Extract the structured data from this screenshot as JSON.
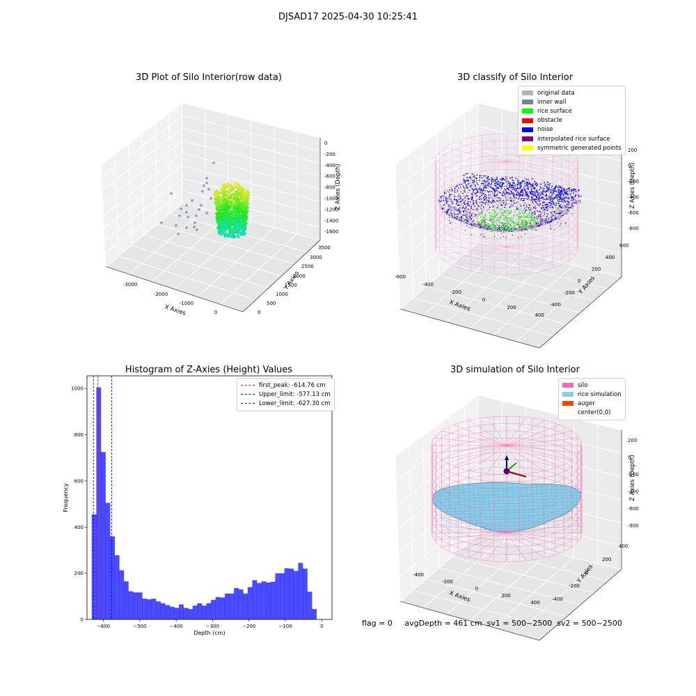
{
  "suptitle": "DJSAD17 2025-04-30 10:25:41",
  "footer": "flag = 0     avgDepth = 461 cm  sv1 = 500~2500  sv2 = 500~2500",
  "panels": {
    "raw": {
      "title": "3D Plot of Silo Interior(row data)",
      "xlabel": "X Axies",
      "ylabel": "Y Axies",
      "zlabel": "Z Axies (Depth)",
      "xticks": [
        "-3000",
        "-2000",
        "-1000",
        "0"
      ],
      "yticks": [
        "0",
        "500",
        "1000",
        "1500",
        "2000",
        "2500",
        "3000",
        "3500"
      ],
      "zticks": [
        "0",
        "-200",
        "-400",
        "-600",
        "-800",
        "-1000",
        "-1200",
        "-1400",
        "-1600"
      ]
    },
    "classify": {
      "title": "3D classify of Silo Interior",
      "xlabel": "X Axies",
      "ylabel": "Y Axies",
      "zlabel": "Z Axies (Depth)",
      "xticks": [
        "-600",
        "-400",
        "-200",
        "0",
        "200",
        "400"
      ],
      "yticks": [
        "-400",
        "-200",
        "0",
        "200",
        "400",
        "600"
      ],
      "zticks": [
        "200",
        "0",
        "-200",
        "-400",
        "-600",
        "-800"
      ],
      "legend": [
        {
          "label": "original data",
          "color": "#b3b3b3"
        },
        {
          "label": "inner wall",
          "color": "#808080"
        },
        {
          "label": "rice surface",
          "color": "#00ff00"
        },
        {
          "label": "obstacle",
          "color": "#ff0000"
        },
        {
          "label": "noise",
          "color": "#0000ff"
        },
        {
          "label": "interpolated rice surface",
          "color": "#800080"
        },
        {
          "label": "symmetric generated points",
          "color": "#ffff00"
        }
      ]
    },
    "simulation": {
      "title": "3D simulation of Silo Interior",
      "xlabel": "X Axies",
      "ylabel": "Y Axies",
      "zlabel": "Z Axies (Depth)",
      "xticks": [
        "-400",
        "-200",
        "0",
        "200",
        "400"
      ],
      "yticks": [
        "-400",
        "-200",
        "0",
        "200",
        "400"
      ],
      "zticks": [
        "200",
        "0",
        "-200",
        "-400",
        "-600",
        "-800"
      ],
      "legend": [
        {
          "label": "silo",
          "color": "#ff69b4"
        },
        {
          "label": "rice simulation",
          "color": "#87ceeb"
        },
        {
          "label": "auger",
          "color": "#ff4500"
        },
        {
          "label": "center(0,0)",
          "color": "#ffffff"
        }
      ]
    }
  },
  "chart_data": {
    "type": "bar",
    "title": "Histogram of Z-Axies (Height) Values",
    "xlabel": "Depth (cm)",
    "ylabel": "Frequency",
    "xlim": [
      -645,
      28
    ],
    "ylim": [
      0,
      1055
    ],
    "xticks": [
      -600,
      -500,
      -400,
      -300,
      -200,
      -100,
      0
    ],
    "yticks": [
      0,
      200,
      400,
      600,
      800,
      1000
    ],
    "bin_width": 12.6,
    "bin_starts": [
      -632,
      -619.4,
      -606.8,
      -594.2,
      -581.6,
      -569,
      -556.4,
      -543.8,
      -531.2,
      -518.6,
      -506,
      -493.4,
      -480.8,
      -468.2,
      -455.6,
      -443,
      -430.4,
      -417.8,
      -405.2,
      -392.6,
      -380,
      -367.4,
      -354.8,
      -342.2,
      -329.6,
      -317,
      -304.4,
      -291.8,
      -279.2,
      -266.6,
      -254,
      -241.4,
      -228.8,
      -216.2,
      -203.6,
      -191,
      -178.4,
      -165.8,
      -153.2,
      -140.6,
      -128,
      -115.4,
      -102.8,
      -90.2,
      -77.6,
      -65,
      -52.4,
      -39.8,
      -27.2,
      -14.6,
      -2
    ],
    "values": [
      455,
      1005,
      725,
      505,
      360,
      278,
      213,
      165,
      122,
      117,
      117,
      90,
      87,
      90,
      78,
      70,
      62,
      55,
      50,
      65,
      50,
      45,
      60,
      70,
      60,
      70,
      85,
      97,
      95,
      112,
      112,
      136,
      130,
      112,
      140,
      170,
      158,
      165,
      160,
      163,
      200,
      200,
      222,
      220,
      210,
      245,
      220,
      120,
      45,
      0,
      0
    ],
    "bar_color": "#0000ff",
    "bar_alpha": 0.7,
    "vlines": [
      {
        "label": "first_peak: -614.76 cm",
        "x": -614.76,
        "color": "#ff0000"
      },
      {
        "label": "Upper_limit: -577.13 cm",
        "x": -577.13,
        "color": "#0000ff"
      },
      {
        "label": "Lower_limit: -627.30 cm",
        "x": -627.3,
        "color": "#0000ff"
      }
    ]
  }
}
